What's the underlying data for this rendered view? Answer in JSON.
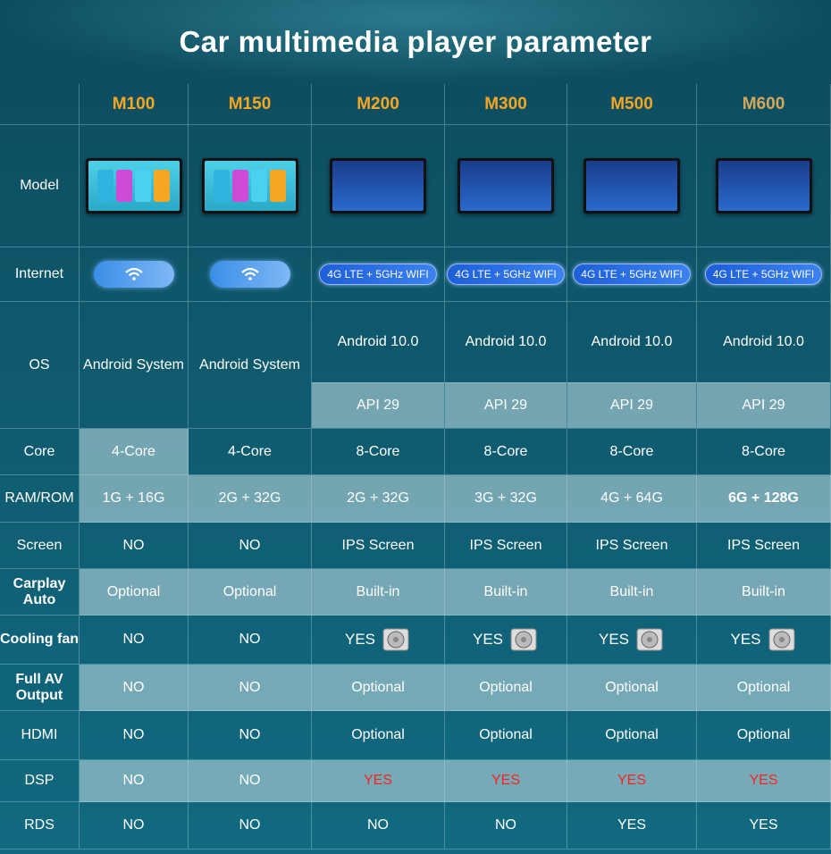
{
  "title": "Car multimedia player parameter",
  "models": [
    "M100",
    "M150",
    "M200",
    "M300",
    "M500",
    "M600"
  ],
  "rows": {
    "model": "Model",
    "internet": "Internet",
    "os": "OS",
    "core": "Core",
    "ram": "RAM/ROM",
    "screen": "Screen",
    "carplay": "Carplay Auto",
    "cooling": "Cooling fan",
    "fullav": "Full AV Output",
    "hdmi": "HDMI",
    "dsp": "DSP",
    "rds": "RDS"
  },
  "internet": [
    "wifi",
    "wifi",
    "4G LTE + 5GHz WIFI",
    "4G LTE + 5GHz WIFI",
    "4G LTE + 5GHz WIFI",
    "4G LTE + 5GHz WIFI"
  ],
  "os": {
    "basic": [
      "Android System",
      "Android System"
    ],
    "android": [
      "Android 10.0",
      "Android 10.0",
      "Android 10.0",
      "Android 10.0"
    ],
    "api": [
      "API 29",
      "API 29",
      "API 29",
      "API 29"
    ]
  },
  "core": [
    "4-Core",
    "4-Core",
    "8-Core",
    "8-Core",
    "8-Core",
    "8-Core"
  ],
  "ram": [
    "1G + 16G",
    "2G + 32G",
    "2G + 32G",
    "3G + 32G",
    "4G + 64G",
    "6G + 128G"
  ],
  "screen": [
    "NO",
    "NO",
    "IPS Screen",
    "IPS Screen",
    "IPS Screen",
    "IPS Screen"
  ],
  "carplay": [
    "Optional",
    "Optional",
    "Built-in",
    "Built-in",
    "Built-in",
    "Built-in"
  ],
  "cooling": [
    "NO",
    "NO",
    "YES",
    "YES",
    "YES",
    "YES"
  ],
  "fullav": [
    "NO",
    "NO",
    "Optional",
    "Optional",
    "Optional",
    "Optional"
  ],
  "hdmi": [
    "NO",
    "NO",
    "Optional",
    "Optional",
    "Optional",
    "Optional"
  ],
  "dsp": [
    "NO",
    "NO",
    "YES",
    "YES",
    "YES",
    "YES"
  ],
  "rds": [
    "NO",
    "NO",
    "NO",
    "NO",
    "YES",
    "YES"
  ],
  "colors": {
    "header": "#f5a623",
    "yes_red": "#ff2222",
    "background": "#0f5a6e"
  }
}
